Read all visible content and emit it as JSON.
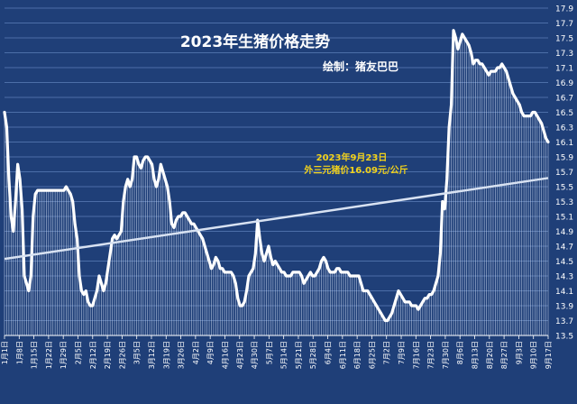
{
  "chart_data": {
    "type": "area",
    "title": "2023年生猪价格走势",
    "subtitle": "绘制：猪友巴巴",
    "annotation": [
      "2023年9月23日",
      "外三元猪价16.09元/公斤"
    ],
    "xlabel": "",
    "ylabel": "",
    "ylim": [
      13.5,
      17.9
    ],
    "yticks": [
      "13.5",
      "13.7",
      "13.9",
      "14.1",
      "14.3",
      "14.5",
      "14.7",
      "14.9",
      "15.1",
      "15.3",
      "15.5",
      "15.7",
      "15.9",
      "16.1",
      "16.3",
      "16.5",
      "16.7",
      "16.9",
      "17.1",
      "17.3",
      "17.5",
      "17.7",
      "17.9"
    ],
    "xticks": [
      "1月1日",
      "1月8日",
      "1月15日",
      "1月22日",
      "1月29日",
      "2月5日",
      "2月12日",
      "2月19日",
      "2月26日",
      "3月5日",
      "3月12日",
      "3月19日",
      "3月26日",
      "4月2日",
      "4月9日",
      "4月16日",
      "4月23日",
      "4月30日",
      "5月7日",
      "5月14日",
      "5月21日",
      "5月28日",
      "6月4日",
      "6月11日",
      "6月18日",
      "6月25日",
      "7月2日",
      "7月9日",
      "7月16日",
      "7月23日",
      "7月30日",
      "8月6日",
      "8月13日",
      "8月20日",
      "8月27日",
      "9月3日",
      "9月10日",
      "9月17日"
    ],
    "grid": true,
    "series": [
      {
        "color": "#ffffff",
        "values": [
          16.5,
          16.3,
          15.6,
          15.1,
          14.9,
          15.3,
          15.8,
          15.6,
          15.2,
          14.3,
          14.2,
          14.1,
          14.3,
          15.1,
          15.4,
          15.45,
          15.45,
          15.45,
          15.45,
          15.45,
          15.45,
          15.45,
          15.45,
          15.45,
          15.45,
          15.45,
          15.45,
          15.45,
          15.5,
          15.45,
          15.4,
          15.3,
          15.0,
          14.8,
          14.3,
          14.1,
          14.05,
          14.1,
          13.95,
          13.9,
          13.9,
          14.0,
          14.1,
          14.3,
          14.2,
          14.1,
          14.2,
          14.4,
          14.6,
          14.8,
          14.85,
          14.8,
          14.85,
          14.9,
          15.3,
          15.5,
          15.6,
          15.5,
          15.6,
          15.9,
          15.9,
          15.8,
          15.75,
          15.85,
          15.9,
          15.9,
          15.85,
          15.8,
          15.6,
          15.5,
          15.6,
          15.8,
          15.7,
          15.6,
          15.5,
          15.3,
          15.0,
          14.95,
          15.05,
          15.1,
          15.1,
          15.15,
          15.15,
          15.1,
          15.05,
          15.0,
          15.0,
          14.95,
          14.9,
          14.85,
          14.8,
          14.7,
          14.6,
          14.5,
          14.4,
          14.45,
          14.55,
          14.5,
          14.4,
          14.4,
          14.35,
          14.35,
          14.35,
          14.35,
          14.3,
          14.2,
          14.0,
          13.9,
          13.9,
          13.95,
          14.1,
          14.3,
          14.35,
          14.4,
          14.6,
          15.05,
          14.8,
          14.6,
          14.5,
          14.6,
          14.7,
          14.55,
          14.45,
          14.5,
          14.45,
          14.4,
          14.35,
          14.35,
          14.3,
          14.3,
          14.3,
          14.35,
          14.35,
          14.35,
          14.35,
          14.3,
          14.2,
          14.25,
          14.3,
          14.35,
          14.3,
          14.3,
          14.35,
          14.4,
          14.5,
          14.55,
          14.5,
          14.4,
          14.35,
          14.35,
          14.35,
          14.4,
          14.4,
          14.35,
          14.35,
          14.35,
          14.35,
          14.3,
          14.3,
          14.3,
          14.3,
          14.3,
          14.2,
          14.1,
          14.1,
          14.1,
          14.05,
          14.0,
          13.95,
          13.9,
          13.85,
          13.8,
          13.75,
          13.7,
          13.7,
          13.75,
          13.8,
          13.9,
          14.0,
          14.1,
          14.05,
          14.0,
          13.95,
          13.95,
          13.95,
          13.9,
          13.9,
          13.9,
          13.85,
          13.9,
          13.95,
          14.0,
          14.0,
          14.05,
          14.05,
          14.1,
          14.2,
          14.3,
          14.6,
          15.3,
          15.2,
          15.6,
          16.3,
          16.6,
          17.6,
          17.5,
          17.35,
          17.45,
          17.55,
          17.5,
          17.45,
          17.4,
          17.3,
          17.15,
          17.2,
          17.2,
          17.15,
          17.15,
          17.1,
          17.05,
          17.0,
          17.05,
          17.05,
          17.05,
          17.1,
          17.1,
          17.15,
          17.1,
          17.05,
          16.95,
          16.85,
          16.75,
          16.7,
          16.65,
          16.6,
          16.5,
          16.45,
          16.45,
          16.45,
          16.45,
          16.5,
          16.5,
          16.45,
          16.4,
          16.35,
          16.25,
          16.15,
          16.1
        ]
      }
    ],
    "trendline": {
      "type": "linear",
      "color": "#d8e2f2"
    }
  }
}
